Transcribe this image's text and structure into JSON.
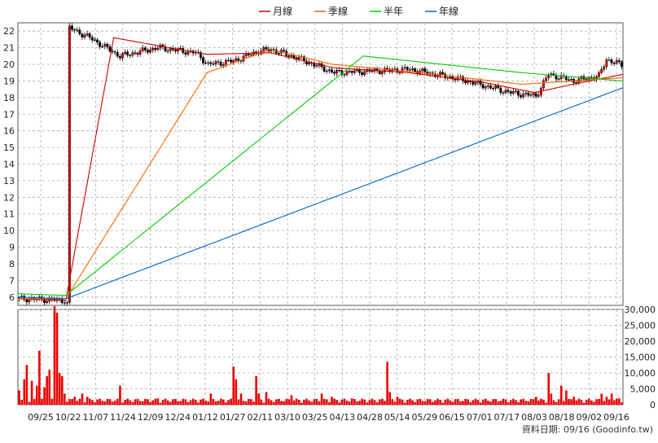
{
  "chart_data": [
    {
      "type": "line",
      "title": "",
      "legend": {
        "placement": "top-center",
        "entries": [
          {
            "name": "月線",
            "color": "#cc0000"
          },
          {
            "name": "季線",
            "color": "#ff6600"
          },
          {
            "name": "半年",
            "color": "#00cc00"
          },
          {
            "name": "年線",
            "color": "#0066cc"
          }
        ]
      },
      "ylim": [
        5.5,
        22.5
      ],
      "yticks": [
        6,
        7,
        8,
        9,
        10,
        11,
        12,
        13,
        14,
        15,
        16,
        17,
        18,
        19,
        20,
        21,
        22
      ],
      "grid": true,
      "x_labels": [
        "09/25",
        "10/22",
        "11/07",
        "11/24",
        "12/09",
        "12/24",
        "01/12",
        "01/27",
        "02/11",
        "03/10",
        "03/25",
        "04/13",
        "04/28",
        "05/14",
        "05/29",
        "06/15",
        "07/01",
        "07/17",
        "08/03",
        "08/18",
        "09/02",
        "09/16"
      ],
      "x_count": 240,
      "close_anchors": [
        [
          0,
          5.9
        ],
        [
          18,
          5.8
        ],
        [
          19,
          5.6
        ],
        [
          20,
          22.2
        ],
        [
          28,
          21.6
        ],
        [
          40,
          20.5
        ],
        [
          55,
          21.0
        ],
        [
          70,
          20.7
        ],
        [
          75,
          20.0
        ],
        [
          85,
          20.2
        ],
        [
          95,
          20.8
        ],
        [
          100,
          20.9
        ],
        [
          110,
          20.4
        ],
        [
          125,
          19.5
        ],
        [
          140,
          19.6
        ],
        [
          155,
          19.7
        ],
        [
          175,
          19.1
        ],
        [
          195,
          18.3
        ],
        [
          205,
          18.1
        ],
        [
          210,
          19.4
        ],
        [
          220,
          19.0
        ],
        [
          230,
          19.3
        ],
        [
          233,
          20.3
        ],
        [
          240,
          19.9
        ]
      ],
      "series": [
        {
          "name": "月線",
          "color": "#cc0000",
          "values": [
            [
              0,
              5.9
            ],
            [
              19,
              5.8
            ],
            [
              38,
              21.6
            ],
            [
              75,
              20.6
            ],
            [
              100,
              20.7
            ],
            [
              125,
              19.8
            ],
            [
              155,
              19.5
            ],
            [
              185,
              18.9
            ],
            [
              205,
              18.3
            ],
            [
              220,
              18.8
            ],
            [
              240,
              19.4
            ]
          ]
        },
        {
          "name": "季線",
          "color": "#ff6600",
          "values": [
            [
              0,
              5.9
            ],
            [
              19,
              5.9
            ],
            [
              75,
              19.5
            ],
            [
              100,
              20.9
            ],
            [
              125,
              20.0
            ],
            [
              160,
              19.5
            ],
            [
              200,
              18.8
            ],
            [
              240,
              19.2
            ]
          ]
        },
        {
          "name": "半年",
          "color": "#00cc00",
          "values": [
            [
              0,
              6.2
            ],
            [
              19,
              6.1
            ],
            [
              137,
              20.5
            ],
            [
              200,
              19.5
            ],
            [
              240,
              19.0
            ]
          ]
        },
        {
          "name": "年線",
          "color": "#0066cc",
          "values": [
            [
              0,
              6.0
            ],
            [
              19,
              5.9
            ],
            [
              240,
              18.6
            ]
          ]
        }
      ]
    },
    {
      "type": "bar",
      "title": "",
      "ylim": [
        0,
        30000
      ],
      "yticks": [
        "0",
        "5,000",
        "10,000",
        "15,000",
        "20,000",
        "25,000",
        "30,000"
      ],
      "color": "#ee0000",
      "spikes": [
        [
          0,
          4500
        ],
        [
          2,
          8000
        ],
        [
          3,
          12500
        ],
        [
          5,
          7500
        ],
        [
          7,
          6000
        ],
        [
          8,
          17000
        ],
        [
          10,
          5500
        ],
        [
          11,
          9000
        ],
        [
          12,
          11000
        ],
        [
          14,
          31000
        ],
        [
          15,
          29000
        ],
        [
          16,
          10000
        ],
        [
          17,
          9000
        ],
        [
          18,
          3500
        ],
        [
          22,
          2500
        ],
        [
          25,
          3500
        ],
        [
          27,
          2500
        ],
        [
          40,
          6000
        ],
        [
          55,
          2000
        ],
        [
          76,
          3500
        ],
        [
          85,
          12000
        ],
        [
          86,
          8000
        ],
        [
          88,
          3500
        ],
        [
          94,
          9000
        ],
        [
          95,
          3500
        ],
        [
          98,
          4000
        ],
        [
          108,
          3000
        ],
        [
          120,
          3500
        ],
        [
          124,
          2500
        ],
        [
          132,
          2000
        ],
        [
          146,
          13500
        ],
        [
          147,
          4000
        ],
        [
          150,
          2500
        ],
        [
          210,
          10000
        ],
        [
          211,
          3500
        ],
        [
          205,
          2500
        ],
        [
          215,
          6000
        ],
        [
          217,
          4500
        ],
        [
          220,
          2500
        ],
        [
          231,
          3500
        ],
        [
          233,
          2500
        ],
        [
          235,
          3500
        ],
        [
          238,
          2000
        ]
      ],
      "baseline": 1000
    }
  ],
  "footer": {
    "text": "資料日期: 09/16 (Goodinfo.tw)"
  }
}
